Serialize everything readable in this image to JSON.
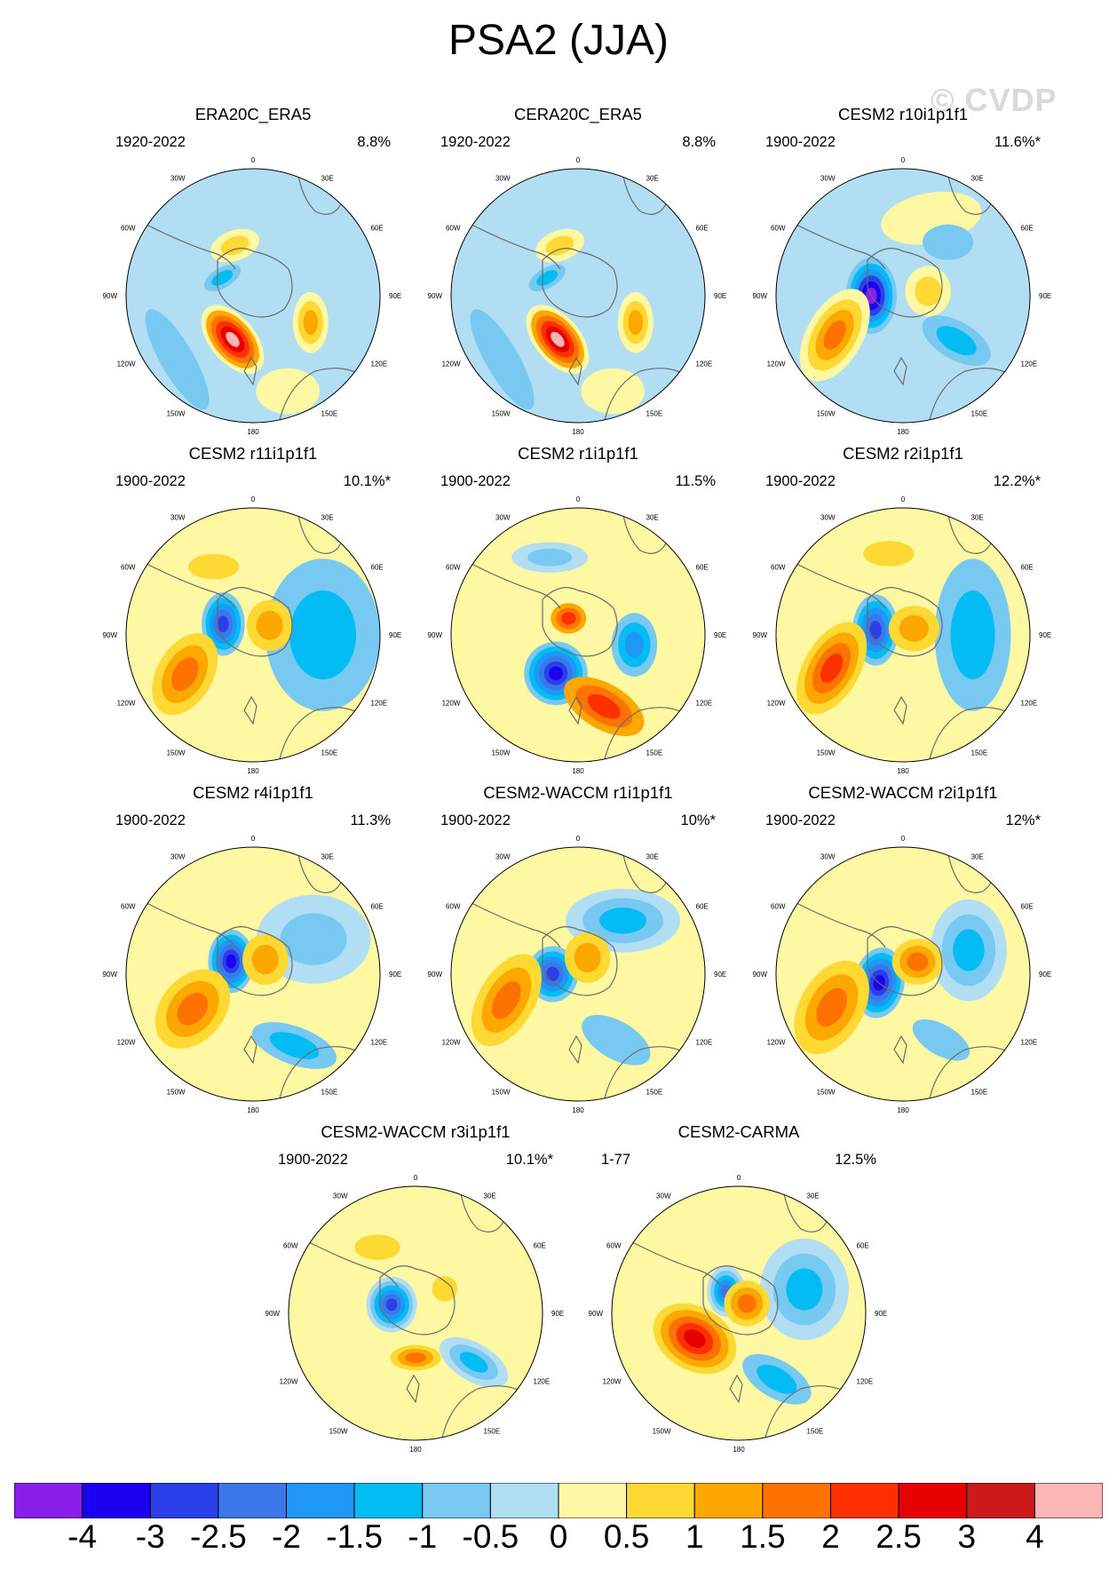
{
  "title": "PSA2 (JJA)",
  "watermark": "© CVDP",
  "colorbar": {
    "colors": [
      "#8a1de8",
      "#1c00f0",
      "#2b3fe8",
      "#3a78ea",
      "#1f97f5",
      "#02bcf3",
      "#78c9f2",
      "#b2def3",
      "#fdf8a1",
      "#fed934",
      "#fca800",
      "#fd7200",
      "#fd3000",
      "#e70000",
      "#cc1a1a",
      "#fcb6b6"
    ],
    "labels": [
      "-4",
      "-3",
      "-2.5",
      "-2",
      "-1.5",
      "-1",
      "-0.5",
      "0",
      "0.5",
      "1",
      "1.5",
      "2",
      "2.5",
      "3",
      "4"
    ]
  },
  "map_labels": {
    "top": "0",
    "top_left": "30W",
    "top_right": "30E",
    "upper_left": "60W",
    "upper_right": "60E",
    "left": "90W",
    "right": "90E",
    "lower_left": "120W",
    "lower_right": "120E",
    "bottom_left": "150W",
    "bottom_right": "150E",
    "bottom": "180"
  },
  "panels": [
    {
      "title": "ERA20C_ERA5",
      "period": "1920-2022",
      "variance": "8.8%",
      "background": 7,
      "blobs": [
        {
          "lon": 205,
          "lat": 0.38,
          "rx": 0.32,
          "ry": 0.18,
          "rot": 50,
          "levels": [
            8,
            10,
            11,
            12,
            13,
            15
          ]
        },
        {
          "lon": 115,
          "lat": 0.5,
          "rx": 0.14,
          "ry": 0.24,
          "rot": 0,
          "levels": [
            8,
            9,
            10
          ]
        },
        {
          "lon": 340,
          "lat": 0.42,
          "rx": 0.2,
          "ry": 0.12,
          "rot": -20,
          "levels": [
            8,
            9
          ]
        },
        {
          "lon": 300,
          "lat": 0.28,
          "rx": 0.16,
          "ry": 0.08,
          "rot": -30,
          "levels": [
            6,
            5
          ]
        },
        {
          "lon": 230,
          "lat": 0.78,
          "rx": 0.45,
          "ry": 0.13,
          "rot": 60,
          "levels": [
            6
          ]
        },
        {
          "lon": 160,
          "lat": 0.8,
          "rx": 0.25,
          "ry": 0.18,
          "rot": 0,
          "levels": [
            8
          ]
        }
      ]
    },
    {
      "title": "CERA20C_ERA5",
      "period": "1920-2022",
      "variance": "8.8%",
      "background": 7,
      "blobs": [
        {
          "lon": 205,
          "lat": 0.38,
          "rx": 0.32,
          "ry": 0.18,
          "rot": 50,
          "levels": [
            8,
            10,
            11,
            12,
            13,
            15
          ]
        },
        {
          "lon": 115,
          "lat": 0.5,
          "rx": 0.14,
          "ry": 0.24,
          "rot": 0,
          "levels": [
            8,
            9,
            10
          ]
        },
        {
          "lon": 340,
          "lat": 0.42,
          "rx": 0.2,
          "ry": 0.12,
          "rot": -20,
          "levels": [
            8,
            9
          ]
        },
        {
          "lon": 300,
          "lat": 0.28,
          "rx": 0.16,
          "ry": 0.08,
          "rot": -30,
          "levels": [
            6,
            5
          ]
        },
        {
          "lon": 230,
          "lat": 0.78,
          "rx": 0.45,
          "ry": 0.13,
          "rot": 60,
          "levels": [
            6
          ]
        },
        {
          "lon": 160,
          "lat": 0.8,
          "rx": 0.25,
          "ry": 0.18,
          "rot": 0,
          "levels": [
            8
          ]
        }
      ]
    },
    {
      "title": "CESM2 r10i1p1f1",
      "period": "1900-2022",
      "variance": "11.6%*",
      "background": 7,
      "blobs": [
        {
          "lon": 270,
          "lat": 0.25,
          "rx": 0.2,
          "ry": 0.3,
          "rot": 0,
          "levels": [
            6,
            5,
            4,
            2,
            1,
            0
          ]
        },
        {
          "lon": 240,
          "lat": 0.62,
          "rx": 0.22,
          "ry": 0.4,
          "rot": 30,
          "levels": [
            8,
            9,
            10,
            11
          ]
        },
        {
          "lon": 20,
          "lat": 0.65,
          "rx": 0.4,
          "ry": 0.2,
          "rot": -10,
          "levels": [
            8
          ]
        },
        {
          "lon": 80,
          "lat": 0.2,
          "rx": 0.18,
          "ry": 0.2,
          "rot": 0,
          "levels": [
            8,
            9
          ]
        },
        {
          "lon": 130,
          "lat": 0.55,
          "rx": 0.3,
          "ry": 0.15,
          "rot": 30,
          "levels": [
            6,
            5
          ]
        },
        {
          "lon": 40,
          "lat": 0.55,
          "rx": 0.2,
          "ry": 0.14,
          "rot": 0,
          "levels": [
            6
          ]
        }
      ]
    },
    {
      "title": "CESM2 r11i1p1f1",
      "period": "1900-2022",
      "variance": "10.1%*",
      "background": 8,
      "blobs": [
        {
          "lon": 90,
          "lat": 0.55,
          "rx": 0.45,
          "ry": 0.6,
          "rot": 0,
          "levels": [
            6,
            5
          ]
        },
        {
          "lon": 290,
          "lat": 0.25,
          "rx": 0.17,
          "ry": 0.25,
          "rot": 0,
          "levels": [
            6,
            5,
            4,
            3,
            2
          ]
        },
        {
          "lon": 240,
          "lat": 0.62,
          "rx": 0.22,
          "ry": 0.35,
          "rot": 30,
          "levels": [
            9,
            10,
            11
          ]
        },
        {
          "lon": 60,
          "lat": 0.15,
          "rx": 0.18,
          "ry": 0.2,
          "rot": 0,
          "levels": [
            9,
            10
          ]
        },
        {
          "lon": 330,
          "lat": 0.62,
          "rx": 0.2,
          "ry": 0.1,
          "rot": 0,
          "levels": [
            9
          ]
        }
      ]
    },
    {
      "title": "CESM2 r1i1p1f1",
      "period": "1900-2022",
      "variance": "11.5%",
      "background": 8,
      "blobs": [
        {
          "lon": 340,
          "lat": 0.65,
          "rx": 0.3,
          "ry": 0.12,
          "rot": 0,
          "levels": [
            7,
            6
          ]
        },
        {
          "lon": 210,
          "lat": 0.35,
          "rx": 0.25,
          "ry": 0.25,
          "rot": 0,
          "levels": [
            6,
            5,
            4,
            3,
            2,
            1
          ]
        },
        {
          "lon": 100,
          "lat": 0.45,
          "rx": 0.18,
          "ry": 0.25,
          "rot": 0,
          "levels": [
            6,
            5,
            4
          ]
        },
        {
          "lon": 330,
          "lat": 0.15,
          "rx": 0.14,
          "ry": 0.12,
          "rot": 0,
          "levels": [
            10,
            11,
            12
          ]
        },
        {
          "lon": 160,
          "lat": 0.6,
          "rx": 0.35,
          "ry": 0.18,
          "rot": 30,
          "levels": [
            10,
            11,
            12
          ]
        }
      ]
    },
    {
      "title": "CESM2 r2i1p1f1",
      "period": "1900-2022",
      "variance": "12.2%*",
      "background": 8,
      "blobs": [
        {
          "lon": 90,
          "lat": 0.55,
          "rx": 0.3,
          "ry": 0.6,
          "rot": 0,
          "levels": [
            6,
            5
          ]
        },
        {
          "lon": 280,
          "lat": 0.22,
          "rx": 0.18,
          "ry": 0.28,
          "rot": 0,
          "levels": [
            6,
            5,
            4,
            3,
            2
          ]
        },
        {
          "lon": 245,
          "lat": 0.62,
          "rx": 0.22,
          "ry": 0.4,
          "rot": 30,
          "levels": [
            9,
            10,
            11,
            12
          ]
        },
        {
          "lon": 60,
          "lat": 0.1,
          "rx": 0.2,
          "ry": 0.18,
          "rot": 0,
          "levels": [
            9,
            10
          ]
        },
        {
          "lon": 350,
          "lat": 0.65,
          "rx": 0.2,
          "ry": 0.1,
          "rot": 0,
          "levels": [
            9
          ]
        }
      ]
    },
    {
      "title": "CESM2 r4i1p1f1",
      "period": "1900-2022",
      "variance": "11.3%",
      "background": 8,
      "blobs": [
        {
          "lon": 60,
          "lat": 0.55,
          "rx": 0.45,
          "ry": 0.35,
          "rot": 0,
          "levels": [
            7,
            6
          ]
        },
        {
          "lon": 150,
          "lat": 0.65,
          "rx": 0.35,
          "ry": 0.15,
          "rot": 20,
          "levels": [
            6,
            5
          ]
        },
        {
          "lon": 300,
          "lat": 0.2,
          "rx": 0.18,
          "ry": 0.25,
          "rot": 0,
          "levels": [
            6,
            5,
            4,
            3,
            2,
            1
          ]
        },
        {
          "lon": 240,
          "lat": 0.55,
          "rx": 0.25,
          "ry": 0.35,
          "rot": 40,
          "levels": [
            9,
            10,
            11
          ]
        },
        {
          "lon": 40,
          "lat": 0.15,
          "rx": 0.18,
          "ry": 0.2,
          "rot": 0,
          "levels": [
            9,
            10
          ]
        }
      ]
    },
    {
      "title": "CESM2-WACCM r1i1p1f1",
      "period": "1900-2022",
      "variance": "10%*",
      "background": 8,
      "blobs": [
        {
          "lon": 40,
          "lat": 0.55,
          "rx": 0.45,
          "ry": 0.25,
          "rot": 0,
          "levels": [
            7,
            6,
            5
          ]
        },
        {
          "lon": 150,
          "lat": 0.6,
          "rx": 0.3,
          "ry": 0.15,
          "rot": 30,
          "levels": [
            6
          ]
        },
        {
          "lon": 270,
          "lat": 0.2,
          "rx": 0.2,
          "ry": 0.22,
          "rot": 0,
          "levels": [
            6,
            5,
            4,
            3,
            2
          ]
        },
        {
          "lon": 250,
          "lat": 0.6,
          "rx": 0.22,
          "ry": 0.4,
          "rot": 30,
          "levels": [
            9,
            10,
            11
          ]
        },
        {
          "lon": 30,
          "lat": 0.15,
          "rx": 0.18,
          "ry": 0.2,
          "rot": 0,
          "levels": [
            9,
            10
          ]
        }
      ]
    },
    {
      "title": "CESM2-WACCM r2i1p1f1",
      "period": "1900-2022",
      "variance": "12%*",
      "background": 8,
      "blobs": [
        {
          "lon": 70,
          "lat": 0.55,
          "rx": 0.3,
          "ry": 0.4,
          "rot": 0,
          "levels": [
            7,
            6,
            5
          ]
        },
        {
          "lon": 150,
          "lat": 0.6,
          "rx": 0.25,
          "ry": 0.12,
          "rot": 30,
          "levels": [
            6
          ]
        },
        {
          "lon": 250,
          "lat": 0.2,
          "rx": 0.2,
          "ry": 0.28,
          "rot": 10,
          "levels": [
            6,
            5,
            4,
            3,
            2,
            1
          ]
        },
        {
          "lon": 245,
          "lat": 0.62,
          "rx": 0.25,
          "ry": 0.4,
          "rot": 30,
          "levels": [
            9,
            10,
            11
          ]
        },
        {
          "lon": 50,
          "lat": 0.15,
          "rx": 0.2,
          "ry": 0.18,
          "rot": 0,
          "levels": [
            9,
            10,
            11
          ]
        }
      ]
    },
    {
      "title": "CESM2-WACCM r3i1p1f1",
      "period": "1900-2022",
      "variance": "10.1%*",
      "background": 8,
      "blobs": [
        {
          "lon": 130,
          "lat": 0.6,
          "rx": 0.3,
          "ry": 0.15,
          "rot": 30,
          "levels": [
            7,
            6,
            5
          ]
        },
        {
          "lon": 290,
          "lat": 0.2,
          "rx": 0.2,
          "ry": 0.22,
          "rot": 0,
          "levels": [
            7,
            6,
            5,
            4,
            3,
            2
          ]
        },
        {
          "lon": 180,
          "lat": 0.35,
          "rx": 0.2,
          "ry": 0.1,
          "rot": 0,
          "levels": [
            9,
            10,
            11
          ]
        },
        {
          "lon": 330,
          "lat": 0.6,
          "rx": 0.18,
          "ry": 0.1,
          "rot": 0,
          "levels": [
            9
          ]
        },
        {
          "lon": 50,
          "lat": 0.3,
          "rx": 0.1,
          "ry": 0.1,
          "rot": 0,
          "levels": [
            9
          ]
        }
      ]
    },
    {
      "title": "CESM2-CARMA",
      "period": "1-77",
      "variance": "12.5%",
      "background": 8,
      "blobs": [
        {
          "lon": 70,
          "lat": 0.55,
          "rx": 0.35,
          "ry": 0.4,
          "rot": 0,
          "levels": [
            7,
            6,
            5
          ]
        },
        {
          "lon": 150,
          "lat": 0.6,
          "rx": 0.3,
          "ry": 0.15,
          "rot": 30,
          "levels": [
            6,
            5
          ]
        },
        {
          "lon": 330,
          "lat": 0.2,
          "rx": 0.15,
          "ry": 0.2,
          "rot": 0,
          "levels": [
            7,
            6,
            5,
            4,
            3
          ]
        },
        {
          "lon": 240,
          "lat": 0.4,
          "rx": 0.35,
          "ry": 0.25,
          "rot": 30,
          "levels": [
            9,
            10,
            11,
            12,
            13
          ]
        },
        {
          "lon": 40,
          "lat": 0.1,
          "rx": 0.18,
          "ry": 0.18,
          "rot": 0,
          "levels": [
            9,
            10,
            11
          ]
        }
      ]
    }
  ]
}
